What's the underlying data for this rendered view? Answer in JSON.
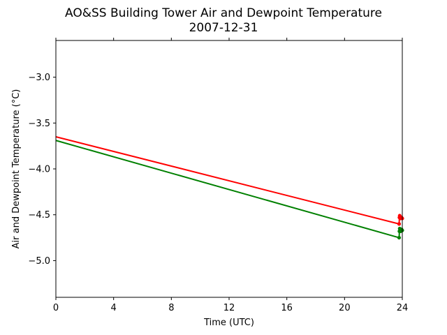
{
  "chart_data": {
    "type": "line",
    "title": "AO&SS Building Tower Air and Dewpoint Temperature",
    "subtitle": "2007-12-31",
    "xlabel": "Time (UTC)",
    "ylabel": "Air and Dewpoint Temperature (°C)",
    "xlim": [
      0,
      24
    ],
    "ylim": [
      -5.4,
      -2.6
    ],
    "xticks": [
      0,
      4,
      8,
      12,
      16,
      20,
      24
    ],
    "xtick_labels": [
      "0",
      "4",
      "8",
      "12",
      "16",
      "20",
      "24"
    ],
    "yticks": [
      -3.0,
      -3.5,
      -4.0,
      -4.5,
      -5.0
    ],
    "ytick_labels": [
      "−3.0",
      "−3.5",
      "−4.0",
      "−4.5",
      "−5.0"
    ],
    "grid": false,
    "series": [
      {
        "color": "#ff0000",
        "x": [
          0,
          23.78,
          23.8,
          23.82,
          23.85,
          23.88,
          23.92,
          23.95,
          24.0
        ],
        "y": [
          -3.65,
          -4.6,
          -4.53,
          -4.51,
          -4.53,
          -4.54,
          -4.53,
          -4.53,
          -4.54
        ]
      },
      {
        "color": "#008000",
        "x": [
          0,
          23.78,
          23.8,
          23.82,
          23.85,
          23.88,
          23.92,
          23.95,
          24.0
        ],
        "y": [
          -3.69,
          -4.75,
          -4.68,
          -4.65,
          -4.66,
          -4.68,
          -4.67,
          -4.66,
          -4.67
        ]
      }
    ]
  }
}
